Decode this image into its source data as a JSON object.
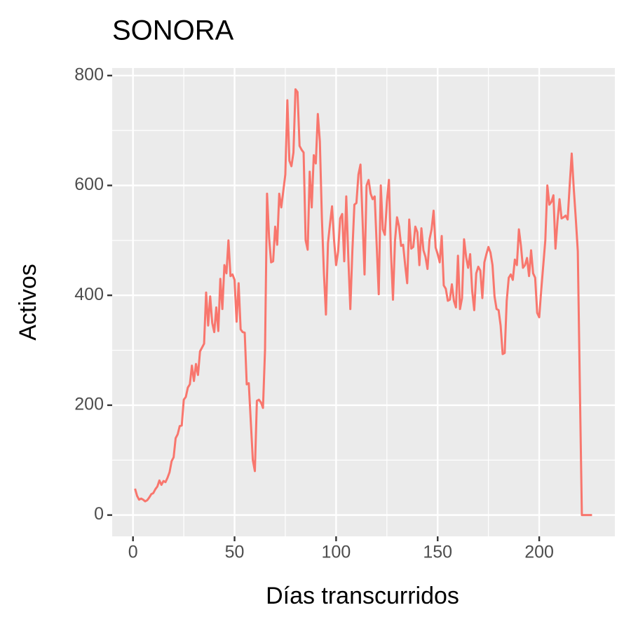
{
  "chart_data": {
    "type": "line",
    "title": "SONORA",
    "x_label": "Días transcurridos",
    "y_label": "Activos",
    "xlim": [
      -10.25,
      237.25
    ],
    "ylim": [
      -38.75,
      813.75
    ],
    "xticks": [
      0,
      50,
      100,
      150,
      200
    ],
    "yticks": [
      0,
      200,
      400,
      600,
      800
    ],
    "grid": true,
    "x": [
      1,
      2,
      3,
      4,
      5,
      6,
      7,
      8,
      9,
      10,
      11,
      12,
      13,
      14,
      15,
      16,
      17,
      18,
      19,
      20,
      21,
      22,
      23,
      24,
      25,
      26,
      27,
      28,
      29,
      30,
      31,
      32,
      33,
      34,
      35,
      36,
      37,
      38,
      39,
      40,
      41,
      42,
      43,
      44,
      45,
      46,
      47,
      48,
      49,
      50,
      51,
      52,
      53,
      54,
      55,
      56,
      57,
      58,
      59,
      60,
      61,
      62,
      63,
      64,
      65,
      66,
      67,
      68,
      69,
      70,
      71,
      72,
      73,
      74,
      75,
      76,
      77,
      78,
      79,
      80,
      81,
      82,
      83,
      84,
      85,
      86,
      87,
      88,
      89,
      90,
      91,
      92,
      93,
      94,
      95,
      96,
      97,
      98,
      99,
      100,
      101,
      102,
      103,
      104,
      105,
      106,
      107,
      108,
      109,
      110,
      111,
      112,
      113,
      114,
      115,
      116,
      117,
      118,
      119,
      120,
      121,
      122,
      123,
      124,
      125,
      126,
      127,
      128,
      129,
      130,
      131,
      132,
      133,
      134,
      135,
      136,
      137,
      138,
      139,
      140,
      141,
      142,
      143,
      144,
      145,
      146,
      147,
      148,
      149,
      150,
      151,
      152,
      153,
      154,
      155,
      156,
      157,
      158,
      159,
      160,
      161,
      162,
      163,
      164,
      165,
      166,
      167,
      168,
      169,
      170,
      171,
      172,
      173,
      174,
      175,
      176,
      177,
      178,
      179,
      180,
      181,
      182,
      183,
      184,
      185,
      186,
      187,
      188,
      189,
      190,
      191,
      192,
      193,
      194,
      195,
      196,
      197,
      198,
      199,
      200,
      201,
      202,
      203,
      204,
      205,
      206,
      207,
      208,
      209,
      210,
      211,
      212,
      213,
      214,
      215,
      216,
      217,
      218,
      219,
      220,
      221,
      222,
      223,
      224,
      225,
      226
    ],
    "series": [
      {
        "color": "#F8766D",
        "values": [
          48,
          35,
          28,
          30,
          28,
          25,
          27,
          32,
          38,
          40,
          47,
          52,
          63,
          55,
          62,
          60,
          68,
          78,
          98,
          105,
          140,
          147,
          162,
          163,
          210,
          215,
          232,
          238,
          272,
          244,
          275,
          255,
          298,
          305,
          312,
          405,
          345,
          398,
          350,
          333,
          378,
          335,
          430,
          375,
          455,
          440,
          500,
          435,
          438,
          428,
          352,
          422,
          338,
          333,
          332,
          238,
          240,
          170,
          100,
          80,
          208,
          210,
          205,
          195,
          300,
          585,
          505,
          460,
          462,
          525,
          492,
          585,
          560,
          590,
          620,
          755,
          645,
          635,
          660,
          775,
          770,
          672,
          665,
          660,
          500,
          483,
          625,
          560,
          655,
          640,
          730,
          680,
          540,
          440,
          365,
          495,
          530,
          562,
          500,
          455,
          480,
          540,
          548,
          462,
          580,
          470,
          375,
          480,
          565,
          568,
          620,
          638,
          540,
          438,
          600,
          610,
          585,
          575,
          580,
          490,
          402,
          600,
          520,
          510,
          570,
          610,
          480,
          392,
          500,
          542,
          525,
          490,
          492,
          455,
          422,
          538,
          485,
          488,
          525,
          515,
          455,
          522,
          482,
          470,
          448,
          502,
          520,
          554,
          487,
          475,
          460,
          508,
          418,
          412,
          390,
          392,
          420,
          390,
          378,
          472,
          375,
          395,
          502,
          470,
          450,
          475,
          408,
          373,
          440,
          452,
          445,
          395,
          460,
          475,
          488,
          478,
          455,
          398,
          375,
          373,
          345,
          293,
          295,
          390,
          432,
          438,
          428,
          465,
          455,
          520,
          490,
          450,
          455,
          468,
          435,
          482,
          440,
          432,
          368,
          360,
          410,
          455,
          500,
          600,
          565,
          570,
          582,
          485,
          535,
          575,
          540,
          542,
          545,
          538,
          600,
          658,
          595,
          540,
          480,
          235,
          0,
          0,
          0,
          0,
          0,
          0
        ]
      }
    ]
  }
}
